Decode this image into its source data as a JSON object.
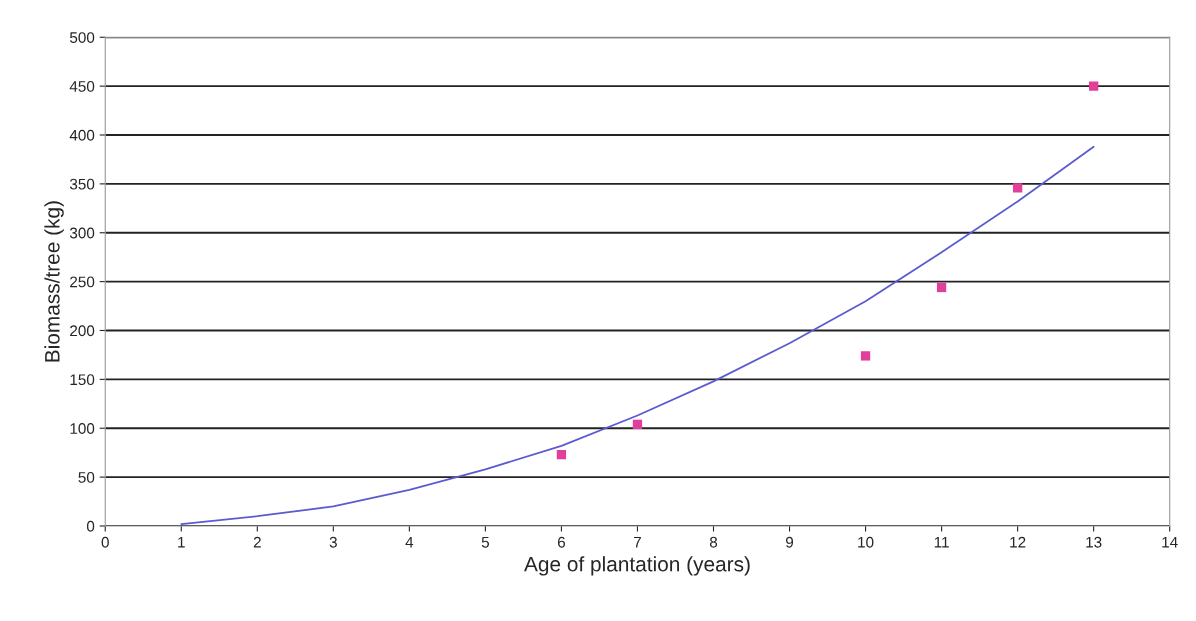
{
  "chart_data": {
    "type": "scatter",
    "xlabel": "Age of plantation (years)",
    "ylabel": "Biomass/tree (kg)",
    "xlim": [
      0,
      14
    ],
    "ylim": [
      0,
      500
    ],
    "xticks": [
      0,
      1,
      2,
      3,
      4,
      5,
      6,
      7,
      8,
      9,
      10,
      11,
      12,
      13,
      14
    ],
    "yticks": [
      0,
      50,
      100,
      150,
      200,
      250,
      300,
      350,
      400,
      450,
      500
    ],
    "grid": "y",
    "legend": false,
    "series": [
      {
        "type": "scatter",
        "color": "#e0409c",
        "marker": "square",
        "x": [
          6,
          7,
          10,
          11,
          12,
          13
        ],
        "values": [
          73,
          104,
          174,
          244,
          346,
          450
        ]
      },
      {
        "type": "line",
        "color": "#5b5bd0",
        "marker": "none",
        "line_style": "solid",
        "x": [
          1,
          2,
          3,
          4,
          5,
          6,
          7,
          8,
          9,
          10,
          11,
          12,
          13
        ],
        "values": [
          2,
          10,
          20,
          37,
          58,
          82,
          113,
          148,
          187,
          230,
          280,
          332,
          388
        ]
      }
    ]
  }
}
